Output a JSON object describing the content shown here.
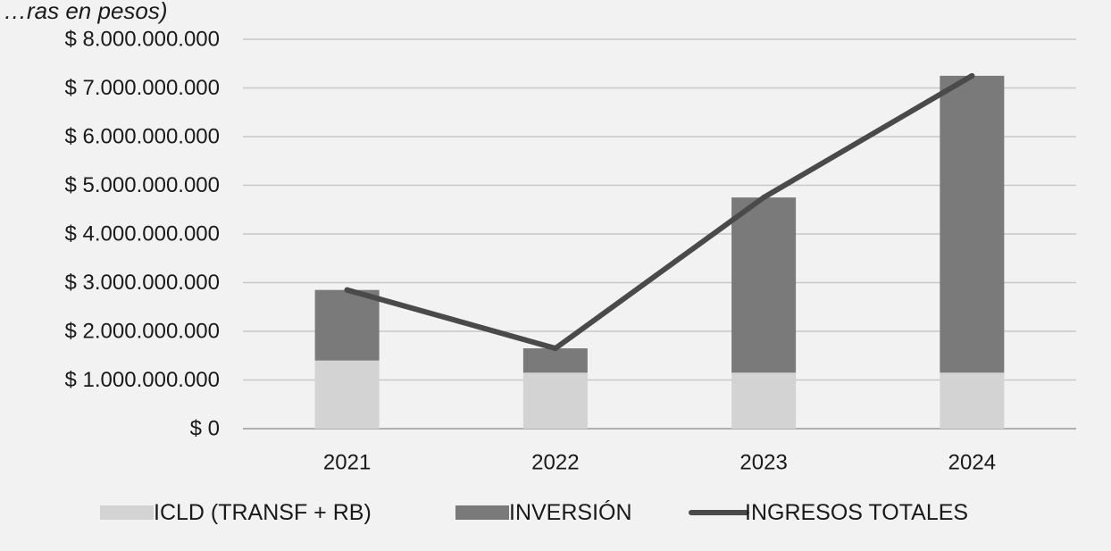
{
  "chart_data": {
    "type": "bar",
    "subtitle": "…ras en pesos)",
    "categories": [
      "2021",
      "2022",
      "2023",
      "2024"
    ],
    "series": [
      {
        "name": "ICLD (TRANSF + RB)",
        "type": "bar",
        "stacked": true,
        "values": [
          1400000000,
          1150000000,
          1150000000,
          1150000000
        ],
        "color": "#d3d3d3"
      },
      {
        "name": "INVERSIÓN",
        "type": "bar",
        "stacked": true,
        "values": [
          1450000000,
          500000000,
          3600000000,
          6100000000
        ],
        "color": "#7a7a7a"
      },
      {
        "name": "INGRESOS TOTALES",
        "type": "line",
        "values": [
          2850000000,
          1650000000,
          4750000000,
          7250000000
        ],
        "color": "#4a4a4a"
      }
    ],
    "ylim": [
      0,
      8000000000
    ],
    "yticks": [
      0,
      1000000000,
      2000000000,
      3000000000,
      4000000000,
      5000000000,
      6000000000,
      7000000000,
      8000000000
    ],
    "ytick_labels": [
      "$ 0",
      "$ 1.000.000.000",
      "$ 2.000.000.000",
      "$ 3.000.000.000",
      "$ 4.000.000.000",
      "$ 5.000.000.000",
      "$ 6.000.000.000",
      "$ 7.000.000.000",
      "$ 8.000.000.000"
    ],
    "grid": true,
    "legend_position": "bottom"
  }
}
